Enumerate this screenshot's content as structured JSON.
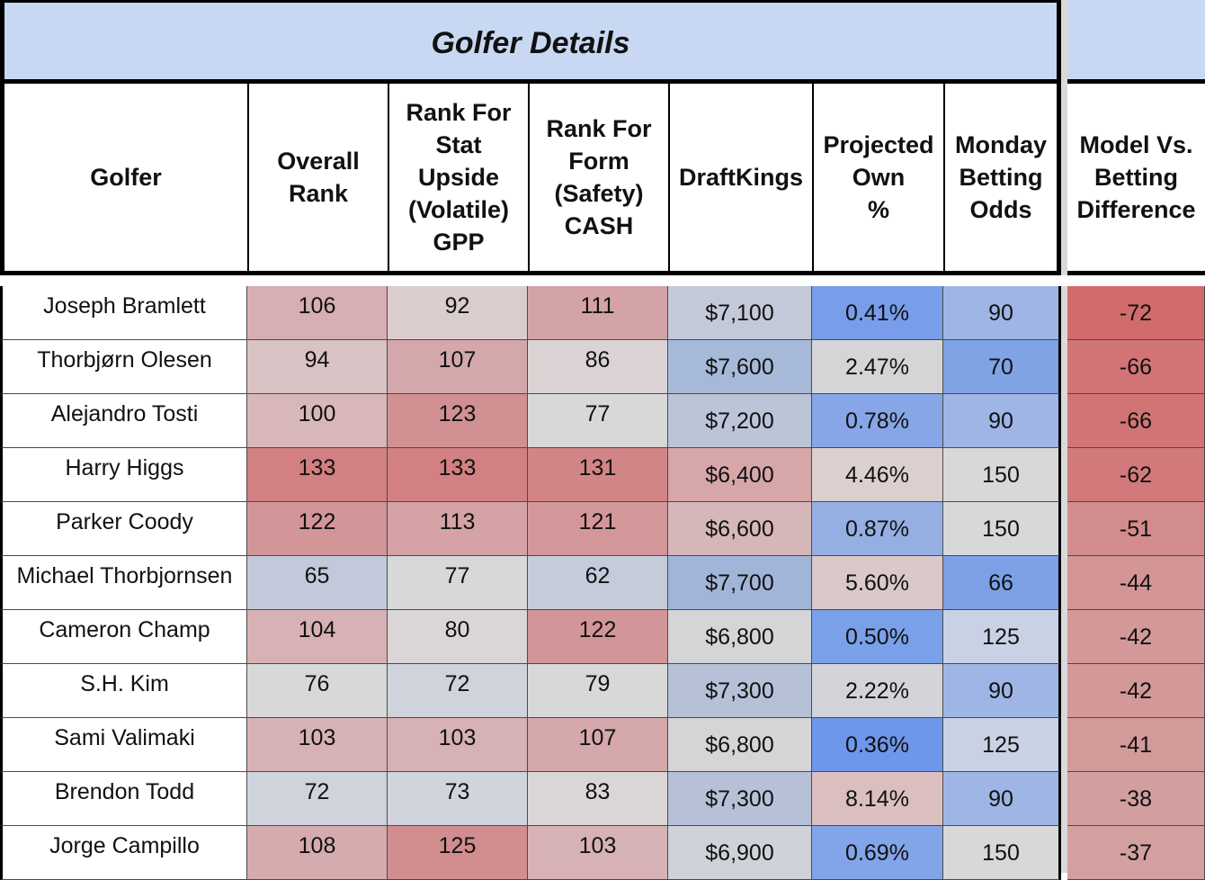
{
  "title": "Golfer Details",
  "headers": {
    "golfer": "Golfer",
    "overall_rank": [
      "Overall",
      "Rank"
    ],
    "stat_upside": [
      "Rank For",
      "Stat",
      "Upside",
      "(Volatile)",
      "GPP"
    ],
    "form": [
      "Rank For",
      "Form",
      "(Safety)",
      "CASH"
    ],
    "draftkings": "DraftKings",
    "projected_own": [
      "Projected",
      "Own",
      "%"
    ],
    "monday_odds": [
      "Monday",
      "Betting",
      "Odds"
    ],
    "model_vs_betting": [
      "Model Vs.",
      "Betting",
      "Difference"
    ]
  },
  "colors": {
    "header_band": "#c9d8f2",
    "border": "#000000",
    "gutter": "#d9d9d9"
  },
  "rows": [
    {
      "golfer": "Joseph Bramlett",
      "overall_rank": "106",
      "stat_upside": "92",
      "form": "111",
      "draftkings": "$7,100",
      "projected_own": "0.41%",
      "monday_odds": "90",
      "difference": "-72",
      "colors": {
        "overall_rank": "#d7aeb1",
        "stat_upside": "#dbcccd",
        "form": "#d4a3a6",
        "draftkings": "#c3c9d9",
        "projected_own": "#779deb",
        "monday_odds": "#9eb5e6",
        "difference": "#d26b6b"
      }
    },
    {
      "golfer": "Thorbjørn Olesen",
      "overall_rank": "94",
      "stat_upside": "107",
      "form": "86",
      "draftkings": "$7,600",
      "projected_own": "2.47%",
      "monday_odds": "70",
      "difference": "-66",
      "colors": {
        "overall_rank": "#d9c2c3",
        "stat_upside": "#d4a8ab",
        "form": "#dbd3d3",
        "draftkings": "#a7b9d8",
        "projected_own": "#d5d5d8",
        "monday_odds": "#80a3e6",
        "difference": "#d27475"
      }
    },
    {
      "golfer": "Alejandro Tosti",
      "overall_rank": "100",
      "stat_upside": "123",
      "form": "77",
      "draftkings": "$7,200",
      "projected_own": "0.78%",
      "monday_odds": "90",
      "difference": "-66",
      "colors": {
        "overall_rank": "#d8b7b9",
        "stat_upside": "#d19193",
        "form": "#d8d8d8",
        "draftkings": "#bcc4d8",
        "projected_own": "#86a6e8",
        "monday_odds": "#9eb5e6",
        "difference": "#d27475"
      }
    },
    {
      "golfer": "Harry Higgs",
      "overall_rank": "133",
      "stat_upside": "133",
      "form": "131",
      "draftkings": "$6,400",
      "projected_own": "4.46%",
      "monday_odds": "150",
      "difference": "-62",
      "colors": {
        "overall_rank": "#d28082",
        "stat_upside": "#d28082",
        "form": "#d28587",
        "draftkings": "#d6a6a9",
        "projected_own": "#dbcfd0",
        "monday_odds": "#d8d8d8",
        "difference": "#d27a7b"
      }
    },
    {
      "golfer": "Parker Coody",
      "overall_rank": "122",
      "stat_upside": "113",
      "form": "121",
      "draftkings": "$6,600",
      "projected_own": "0.87%",
      "monday_odds": "150",
      "difference": "-51",
      "colors": {
        "overall_rank": "#d39698",
        "stat_upside": "#d5a2a5",
        "form": "#d49799",
        "draftkings": "#d6b7b9",
        "projected_own": "#96afe3",
        "monday_odds": "#d8d8d8",
        "difference": "#d28c8d"
      }
    },
    {
      "golfer": "Michael Thorbjornsen",
      "overall_rank": "65",
      "stat_upside": "77",
      "form": "62",
      "draftkings": "$7,700",
      "projected_own": "5.60%",
      "monday_odds": "66",
      "difference": "-44",
      "colors": {
        "overall_rank": "#c2c9db",
        "stat_upside": "#d8d8d8",
        "form": "#c6cbdb",
        "draftkings": "#a0b5d8",
        "projected_own": "#dbc8c9",
        "monday_odds": "#7ba0e6",
        "difference": "#d39596"
      }
    },
    {
      "golfer": "Cameron Champ",
      "overall_rank": "104",
      "stat_upside": "80",
      "form": "122",
      "draftkings": "$6,800",
      "projected_own": "0.50%",
      "monday_odds": "125",
      "difference": "-42",
      "colors": {
        "overall_rank": "#d7b1b3",
        "stat_upside": "#dad5d6",
        "form": "#d39698",
        "draftkings": "#d5d5d8",
        "projected_own": "#7aa0ea",
        "monday_odds": "#c9d1e4",
        "difference": "#d39898"
      }
    },
    {
      "golfer": "S.H. Kim",
      "overall_rank": "76",
      "stat_upside": "72",
      "form": "79",
      "draftkings": "$7,300",
      "projected_own": "2.22%",
      "monday_odds": "90",
      "difference": "-42",
      "colors": {
        "overall_rank": "#d8d8d8",
        "stat_upside": "#cfd3dc",
        "form": "#d8d8d8",
        "draftkings": "#b6c1d8",
        "projected_own": "#d3d4da",
        "monday_odds": "#9eb5e6",
        "difference": "#d39898"
      }
    },
    {
      "golfer": "Sami Valimaki",
      "overall_rank": "103",
      "stat_upside": "103",
      "form": "107",
      "draftkings": "$6,800",
      "projected_own": "0.36%",
      "monday_odds": "125",
      "difference": "-41",
      "colors": {
        "overall_rank": "#d7b2b4",
        "stat_upside": "#d7b2b4",
        "form": "#d5a8ab",
        "draftkings": "#d5d5d8",
        "projected_own": "#6e96ea",
        "monday_odds": "#c9d1e4",
        "difference": "#d39a9a"
      }
    },
    {
      "golfer": "Brendon Todd",
      "overall_rank": "72",
      "stat_upside": "73",
      "form": "83",
      "draftkings": "$7,300",
      "projected_own": "8.14%",
      "monday_odds": "90",
      "difference": "-38",
      "colors": {
        "overall_rank": "#cfd3dc",
        "stat_upside": "#d1d4dc",
        "form": "#dad6d6",
        "draftkings": "#b6c1d8",
        "projected_own": "#dbbfc0",
        "monday_odds": "#9eb5e6",
        "difference": "#d39e9e"
      }
    },
    {
      "golfer": "Jorge Campillo",
      "overall_rank": "108",
      "stat_upside": "125",
      "form": "103",
      "draftkings": "$6,900",
      "projected_own": "0.69%",
      "monday_odds": "150",
      "difference": "-37",
      "colors": {
        "overall_rank": "#d5abae",
        "stat_upside": "#d28d8f",
        "form": "#d7b2b4",
        "draftkings": "#cfd2d8",
        "projected_own": "#82a4e9",
        "monday_odds": "#d8d8d8",
        "difference": "#d3a0a0"
      }
    }
  ]
}
